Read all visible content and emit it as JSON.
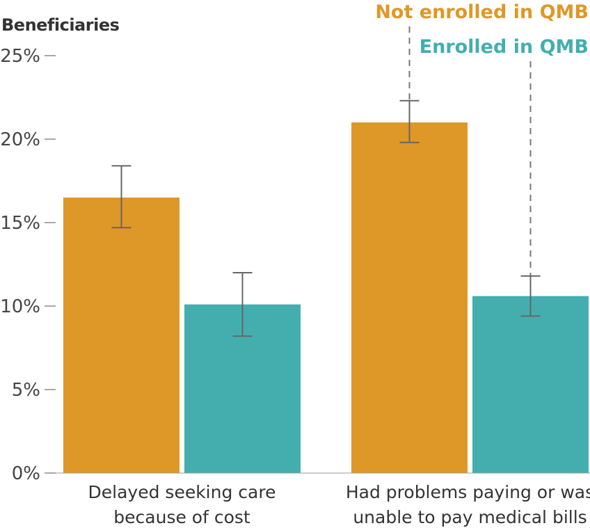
{
  "chart_data": {
    "type": "bar",
    "ylabel": "Beneficiaries",
    "ylim": [
      0,
      25
    ],
    "yticks": [
      0,
      5,
      10,
      15,
      20,
      25
    ],
    "ytick_labels": [
      "0%",
      "5%",
      "10%",
      "15%",
      "20%",
      "25%"
    ],
    "categories": [
      [
        "Delayed seeking care",
        "because of cost"
      ],
      [
        "Had problems paying or was",
        "unable to pay medical bills"
      ]
    ],
    "series": [
      {
        "name": "Not enrolled in QMB",
        "color": "#DE9828",
        "values": [
          16.5,
          21.0
        ],
        "error_low": [
          14.7,
          19.8
        ],
        "error_high": [
          18.4,
          22.3
        ]
      },
      {
        "name": "Enrolled in QMB",
        "color": "#44AEAF",
        "values": [
          10.1,
          10.6
        ],
        "error_low": [
          8.2,
          9.4
        ],
        "error_high": [
          12.0,
          11.8
        ]
      }
    ],
    "legend": "top-right, labels connected to bars by dashed leader lines",
    "grid": false
  }
}
